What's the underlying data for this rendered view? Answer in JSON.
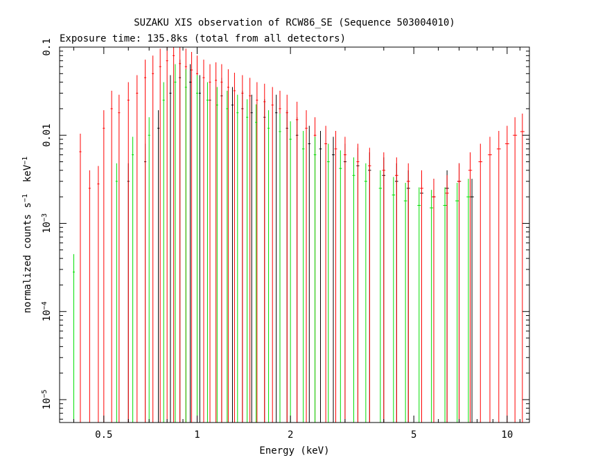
{
  "chart_data": {
    "type": "scatter",
    "title": "SUZAKU XIS observation of RCW86_SE (Sequence 503004010)",
    "subtitle": "Exposure time: 135.8ks (total from all detectors)",
    "xlabel": "Energy (keV)",
    "ylabel": {
      "base": "normalized counts s",
      "sup1": "−1",
      "mid": "  keV",
      "sup2": "−1"
    },
    "xscale": "log",
    "yscale": "log",
    "xlim": [
      0.36,
      11.8
    ],
    "ylim": [
      5.5e-06,
      0.1
    ],
    "xticks": [
      {
        "value": 0.5,
        "label": "0.5"
      },
      {
        "value": 1,
        "label": "1"
      },
      {
        "value": 2,
        "label": "2"
      },
      {
        "value": 5,
        "label": "5"
      },
      {
        "value": 10,
        "label": "10"
      }
    ],
    "yticks": [
      {
        "value": 1e-05,
        "label": "10",
        "sup": "−5"
      },
      {
        "value": 0.0001,
        "label": "10",
        "sup": "−4"
      },
      {
        "value": 0.001,
        "label": "10",
        "sup": "−3"
      },
      {
        "value": 0.01,
        "label": "0.01",
        "sup": ""
      },
      {
        "value": 0.1,
        "label": "0.1",
        "sup": ""
      }
    ],
    "series": [
      {
        "color": "#000000",
        "points": [
          {
            "x": 0.6,
            "y": 0.003
          },
          {
            "x": 0.68,
            "y": 0.005
          },
          {
            "x": 0.75,
            "y": 0.012
          },
          {
            "x": 0.82,
            "y": 0.03
          },
          {
            "x": 0.88,
            "y": 0.045
          },
          {
            "x": 0.95,
            "y": 0.04
          },
          {
            "x": 1.02,
            "y": 0.03
          },
          {
            "x": 1.1,
            "y": 0.025
          },
          {
            "x": 1.2,
            "y": 0.028
          },
          {
            "x": 1.3,
            "y": 0.022
          },
          {
            "x": 1.4,
            "y": 0.02
          },
          {
            "x": 1.5,
            "y": 0.018
          },
          {
            "x": 1.65,
            "y": 0.016
          },
          {
            "x": 1.8,
            "y": 0.018
          },
          {
            "x": 1.95,
            "y": 0.012
          },
          {
            "x": 2.1,
            "y": 0.01
          },
          {
            "x": 2.3,
            "y": 0.008
          },
          {
            "x": 2.5,
            "y": 0.007
          },
          {
            "x": 2.75,
            "y": 0.006
          },
          {
            "x": 3.0,
            "y": 0.005
          },
          {
            "x": 3.3,
            "y": 0.0045
          },
          {
            "x": 3.6,
            "y": 0.004
          },
          {
            "x": 4.0,
            "y": 0.0035
          },
          {
            "x": 4.4,
            "y": 0.003
          },
          {
            "x": 4.8,
            "y": 0.0025
          },
          {
            "x": 5.3,
            "y": 0.0022
          },
          {
            "x": 5.8,
            "y": 0.002
          },
          {
            "x": 6.4,
            "y": 0.0025
          },
          {
            "x": 7.0,
            "y": 0.003
          },
          {
            "x": 7.7,
            "y": 0.002
          }
        ]
      },
      {
        "color": "#ff0000",
        "points": [
          {
            "x": 0.42,
            "y": 0.0065
          },
          {
            "x": 0.45,
            "y": 0.0025
          },
          {
            "x": 0.48,
            "y": 0.0028
          },
          {
            "x": 0.5,
            "y": 0.012
          },
          {
            "x": 0.53,
            "y": 0.02
          },
          {
            "x": 0.56,
            "y": 0.018
          },
          {
            "x": 0.6,
            "y": 0.025
          },
          {
            "x": 0.64,
            "y": 0.03
          },
          {
            "x": 0.68,
            "y": 0.045
          },
          {
            "x": 0.72,
            "y": 0.05
          },
          {
            "x": 0.76,
            "y": 0.06
          },
          {
            "x": 0.8,
            "y": 0.07
          },
          {
            "x": 0.84,
            "y": 0.08
          },
          {
            "x": 0.88,
            "y": 0.065
          },
          {
            "x": 0.92,
            "y": 0.06
          },
          {
            "x": 0.96,
            "y": 0.055
          },
          {
            "x": 1.0,
            "y": 0.05
          },
          {
            "x": 1.05,
            "y": 0.045
          },
          {
            "x": 1.1,
            "y": 0.04
          },
          {
            "x": 1.15,
            "y": 0.042
          },
          {
            "x": 1.2,
            "y": 0.04
          },
          {
            "x": 1.26,
            "y": 0.035
          },
          {
            "x": 1.32,
            "y": 0.032
          },
          {
            "x": 1.4,
            "y": 0.03
          },
          {
            "x": 1.48,
            "y": 0.028
          },
          {
            "x": 1.56,
            "y": 0.025
          },
          {
            "x": 1.65,
            "y": 0.024
          },
          {
            "x": 1.75,
            "y": 0.022
          },
          {
            "x": 1.85,
            "y": 0.02
          },
          {
            "x": 1.95,
            "y": 0.018
          },
          {
            "x": 2.1,
            "y": 0.015
          },
          {
            "x": 2.25,
            "y": 0.012
          },
          {
            "x": 2.4,
            "y": 0.01
          },
          {
            "x": 2.6,
            "y": 0.008
          },
          {
            "x": 2.8,
            "y": 0.007
          },
          {
            "x": 3.0,
            "y": 0.006
          },
          {
            "x": 3.3,
            "y": 0.005
          },
          {
            "x": 3.6,
            "y": 0.0045
          },
          {
            "x": 4.0,
            "y": 0.004
          },
          {
            "x": 4.4,
            "y": 0.0035
          },
          {
            "x": 4.8,
            "y": 0.003
          },
          {
            "x": 5.3,
            "y": 0.0025
          },
          {
            "x": 5.8,
            "y": 0.002
          },
          {
            "x": 6.4,
            "y": 0.0022
          },
          {
            "x": 7.0,
            "y": 0.003
          },
          {
            "x": 7.6,
            "y": 0.004
          },
          {
            "x": 8.2,
            "y": 0.005
          },
          {
            "x": 8.8,
            "y": 0.006
          },
          {
            "x": 9.4,
            "y": 0.007
          },
          {
            "x": 10.0,
            "y": 0.008
          },
          {
            "x": 10.6,
            "y": 0.01
          },
          {
            "x": 11.2,
            "y": 0.011
          }
        ]
      },
      {
        "color": "#00dd00",
        "points": [
          {
            "x": 0.4,
            "y": 0.00028
          },
          {
            "x": 0.55,
            "y": 0.003
          },
          {
            "x": 0.62,
            "y": 0.006
          },
          {
            "x": 0.7,
            "y": 0.01
          },
          {
            "x": 0.78,
            "y": 0.025
          },
          {
            "x": 0.85,
            "y": 0.04
          },
          {
            "x": 0.92,
            "y": 0.035
          },
          {
            "x": 1.0,
            "y": 0.03
          },
          {
            "x": 1.08,
            "y": 0.025
          },
          {
            "x": 1.16,
            "y": 0.022
          },
          {
            "x": 1.25,
            "y": 0.02
          },
          {
            "x": 1.35,
            "y": 0.018
          },
          {
            "x": 1.45,
            "y": 0.016
          },
          {
            "x": 1.55,
            "y": 0.014
          },
          {
            "x": 1.7,
            "y": 0.012
          },
          {
            "x": 1.85,
            "y": 0.011
          },
          {
            "x": 2.0,
            "y": 0.009
          },
          {
            "x": 2.2,
            "y": 0.007
          },
          {
            "x": 2.4,
            "y": 0.006
          },
          {
            "x": 2.65,
            "y": 0.005
          },
          {
            "x": 2.9,
            "y": 0.0042
          },
          {
            "x": 3.2,
            "y": 0.0035
          },
          {
            "x": 3.5,
            "y": 0.003
          },
          {
            "x": 3.9,
            "y": 0.0025
          },
          {
            "x": 4.3,
            "y": 0.0021
          },
          {
            "x": 4.7,
            "y": 0.0018
          },
          {
            "x": 5.2,
            "y": 0.0016
          },
          {
            "x": 5.7,
            "y": 0.0015
          },
          {
            "x": 6.3,
            "y": 0.0016
          },
          {
            "x": 6.9,
            "y": 0.0018
          },
          {
            "x": 7.5,
            "y": 0.002
          }
        ]
      }
    ]
  }
}
